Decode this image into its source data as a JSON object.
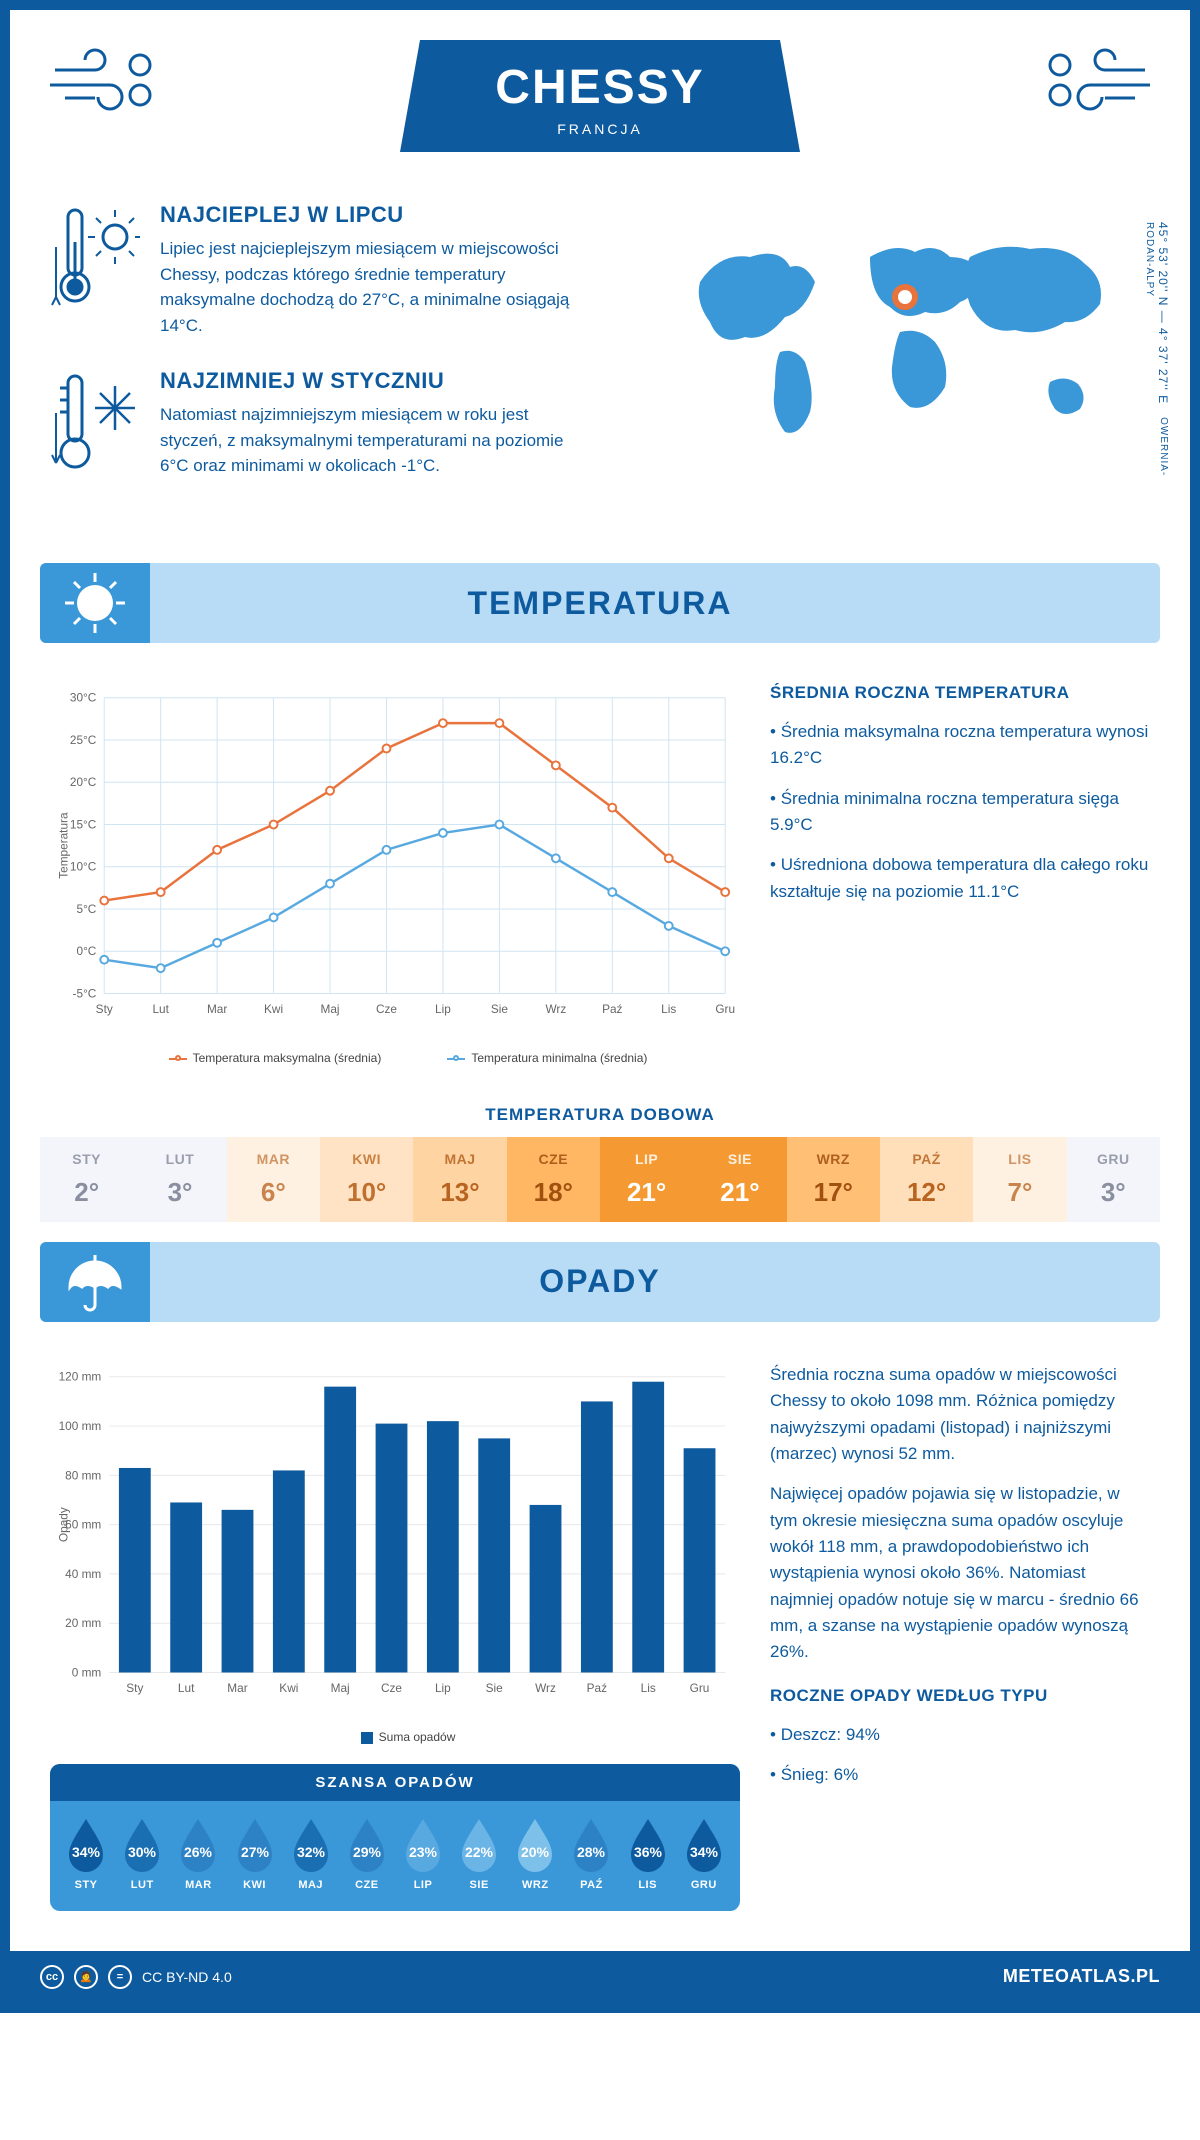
{
  "colors": {
    "primary": "#0d5a9e",
    "light_blue": "#b8dcf5",
    "mid_blue": "#3a97d8",
    "orange": "#e8733c",
    "chart_blue": "#58a9e0"
  },
  "header": {
    "city": "CHESSY",
    "country": "FRANCJA"
  },
  "coords": "45° 53' 20'' N — 4° 37' 27'' E",
  "region": "OWERNIA-RODAN-ALPY",
  "facts": {
    "hot": {
      "title": "NAJCIEPLEJ W LIPCU",
      "text": "Lipiec jest najcieplejszym miesiącem w miejscowości Chessy, podczas którego średnie temperatury maksymalne dochodzą do 27°C, a minimalne osiągają 14°C."
    },
    "cold": {
      "title": "NAJZIMNIEJ W STYCZNIU",
      "text": "Natomiast najzimniejszym miesiącem w roku jest styczeń, z maksymalnymi temperaturami na poziomie 6°C oraz minimami w okolicach -1°C."
    }
  },
  "temperature": {
    "section_title": "TEMPERATURA",
    "stats_title": "ŚREDNIA ROCZNA TEMPERATURA",
    "stats": [
      "Średnia maksymalna roczna temperatura wynosi 16.2°C",
      "Średnia minimalna roczna temperatura sięga 5.9°C",
      "Uśredniona dobowa temperatura dla całego roku kształtuje się na poziomie 11.1°C"
    ],
    "chart": {
      "type": "line",
      "months": [
        "Sty",
        "Lut",
        "Mar",
        "Kwi",
        "Maj",
        "Cze",
        "Lip",
        "Sie",
        "Wrz",
        "Paź",
        "Lis",
        "Gru"
      ],
      "ylabel": "Temperatura",
      "ylim": [
        -5,
        30
      ],
      "yticks": [
        -5,
        0,
        5,
        10,
        15,
        20,
        25,
        30
      ],
      "ytick_labels": [
        "-5°C",
        "0°C",
        "5°C",
        "10°C",
        "15°C",
        "20°C",
        "25°C",
        "30°C"
      ],
      "grid_color": "#d0e4f2",
      "series": [
        {
          "name": "Temperatura maksymalna (średnia)",
          "color": "#e8733c",
          "data": [
            6,
            7,
            12,
            15,
            19,
            24,
            27,
            27,
            22,
            17,
            11,
            7
          ]
        },
        {
          "name": "Temperatura minimalna (średnia)",
          "color": "#58a9e0",
          "data": [
            -1,
            -2,
            1,
            4,
            8,
            12,
            14,
            15,
            11,
            7,
            3,
            0
          ]
        }
      ]
    },
    "daily_title": "TEMPERATURA DOBOWA",
    "daily": [
      {
        "m": "STY",
        "v": "2°",
        "bg": "#f4f5fb",
        "fg": "#8a8fa0"
      },
      {
        "m": "LUT",
        "v": "3°",
        "bg": "#f4f5fb",
        "fg": "#8a8fa0"
      },
      {
        "m": "MAR",
        "v": "6°",
        "bg": "#fff1e2",
        "fg": "#c9844e"
      },
      {
        "m": "KWI",
        "v": "10°",
        "bg": "#ffe3c4",
        "fg": "#c0702e"
      },
      {
        "m": "MAJ",
        "v": "13°",
        "bg": "#ffd4a3",
        "fg": "#b86420"
      },
      {
        "m": "CZE",
        "v": "18°",
        "bg": "#ffb763",
        "fg": "#a0500f"
      },
      {
        "m": "LIP",
        "v": "21°",
        "bg": "#f59a33",
        "fg": "#ffffff"
      },
      {
        "m": "SIE",
        "v": "21°",
        "bg": "#f59a33",
        "fg": "#ffffff"
      },
      {
        "m": "WRZ",
        "v": "17°",
        "bg": "#ffbf75",
        "fg": "#a0500f"
      },
      {
        "m": "PAŹ",
        "v": "12°",
        "bg": "#ffdfb9",
        "fg": "#b86420"
      },
      {
        "m": "LIS",
        "v": "7°",
        "bg": "#fff1e2",
        "fg": "#c9844e"
      },
      {
        "m": "GRU",
        "v": "3°",
        "bg": "#f4f5fb",
        "fg": "#8a8fa0"
      }
    ]
  },
  "precip": {
    "section_title": "OPADY",
    "para1": "Średnia roczna suma opadów w miejscowości Chessy to około 1098 mm. Różnica pomiędzy najwyższymi opadami (listopad) i najniższymi (marzec) wynosi 52 mm.",
    "para2": "Najwięcej opadów pojawia się w listopadzie, w tym okresie miesięczna suma opadów oscyluje wokół 118 mm, a prawdopodobieństwo ich wystąpienia wynosi około 36%. Natomiast najmniej opadów notuje się w marcu - średnio 66 mm, a szanse na wystąpienie opadów wynoszą 26%.",
    "chart": {
      "type": "bar",
      "months": [
        "Sty",
        "Lut",
        "Mar",
        "Kwi",
        "Maj",
        "Cze",
        "Lip",
        "Sie",
        "Wrz",
        "Paź",
        "Lis",
        "Gru"
      ],
      "ylabel": "Opady",
      "ylim": [
        0,
        120
      ],
      "yticks": [
        0,
        20,
        40,
        60,
        80,
        100,
        120
      ],
      "ytick_labels": [
        "0 mm",
        "20 mm",
        "40 mm",
        "60 mm",
        "80 mm",
        "100 mm",
        "120 mm"
      ],
      "bar_color": "#0d5a9e",
      "legend_label": "Suma opadów",
      "data": [
        83,
        69,
        66,
        82,
        116,
        101,
        102,
        95,
        68,
        110,
        118,
        91
      ]
    },
    "chance_title": "SZANSA OPADÓW",
    "chance": [
      {
        "m": "STY",
        "p": "34%",
        "c": "#0d5a9e"
      },
      {
        "m": "LUT",
        "p": "30%",
        "c": "#1a6fb3"
      },
      {
        "m": "MAR",
        "p": "26%",
        "c": "#2d82c6"
      },
      {
        "m": "KWI",
        "p": "27%",
        "c": "#2d82c6"
      },
      {
        "m": "MAJ",
        "p": "32%",
        "c": "#1a6fb3"
      },
      {
        "m": "CZE",
        "p": "29%",
        "c": "#2d82c6"
      },
      {
        "m": "LIP",
        "p": "23%",
        "c": "#58a9e0"
      },
      {
        "m": "SIE",
        "p": "22%",
        "c": "#6bb5e6"
      },
      {
        "m": "WRZ",
        "p": "20%",
        "c": "#7dc0ea"
      },
      {
        "m": "PAŹ",
        "p": "28%",
        "c": "#2d82c6"
      },
      {
        "m": "LIS",
        "p": "36%",
        "c": "#0d5a9e"
      },
      {
        "m": "GRU",
        "p": "34%",
        "c": "#0d5a9e"
      }
    ],
    "bytype_title": "ROCZNE OPADY WEDŁUG TYPU",
    "bytype": [
      "Deszcz: 94%",
      "Śnieg: 6%"
    ]
  },
  "footer": {
    "license": "CC BY-ND 4.0",
    "site": "METEOATLAS.PL"
  }
}
